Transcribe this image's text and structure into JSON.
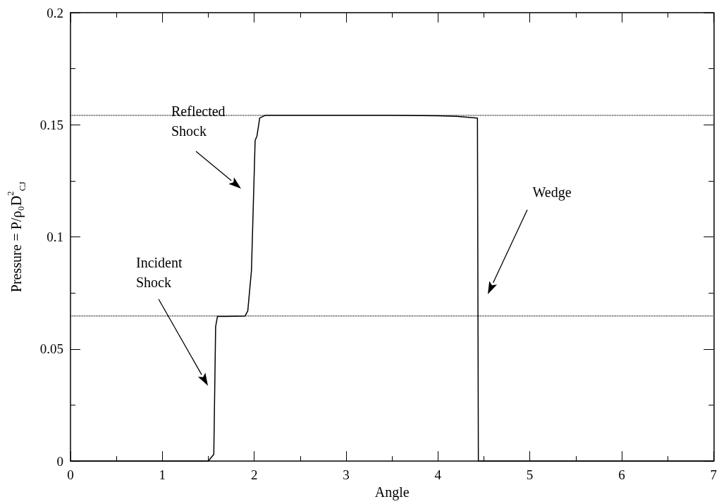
{
  "chart_data": {
    "type": "line",
    "xlabel": "Angle",
    "ylabel": "Pressure = P/ρ₀D$^{2}$$_{CJ}$",
    "x": [
      0,
      1.5,
      1.56,
      1.58,
      1.6,
      1.7,
      1.9,
      1.93,
      1.97,
      2.01,
      2.03,
      2.06,
      2.12,
      3.0,
      3.5,
      4.0,
      4.2,
      4.43,
      4.44,
      5.0,
      6.0,
      7.0
    ],
    "series": [
      {
        "color": "#000000",
        "values": [
          0,
          0,
          0.003,
          0.06,
          0.0645,
          0.0645,
          0.0647,
          0.067,
          0.085,
          0.143,
          0.145,
          0.153,
          0.1542,
          0.1542,
          0.1542,
          0.154,
          0.1538,
          0.153,
          0,
          0,
          0,
          0
        ]
      }
    ],
    "xlim": [
      0,
      7
    ],
    "xticks": [
      0,
      1,
      2,
      3,
      4,
      5,
      6,
      7
    ],
    "ylim": [
      0,
      0.2
    ],
    "yticks": [
      0,
      0.05,
      0.1,
      0.15,
      0.2
    ],
    "ref_lines": [
      {
        "axis": "y",
        "value": 0.1542,
        "color": "#000000",
        "line_style": "dotted"
      },
      {
        "axis": "y",
        "value": 0.0647,
        "color": "#000000",
        "line_style": "dotted"
      }
    ],
    "annotations": [
      "Incident\nShock",
      "Reflected\nShock",
      "Wedge"
    ],
    "grid": false,
    "marker": "none",
    "line_style": "solid"
  }
}
